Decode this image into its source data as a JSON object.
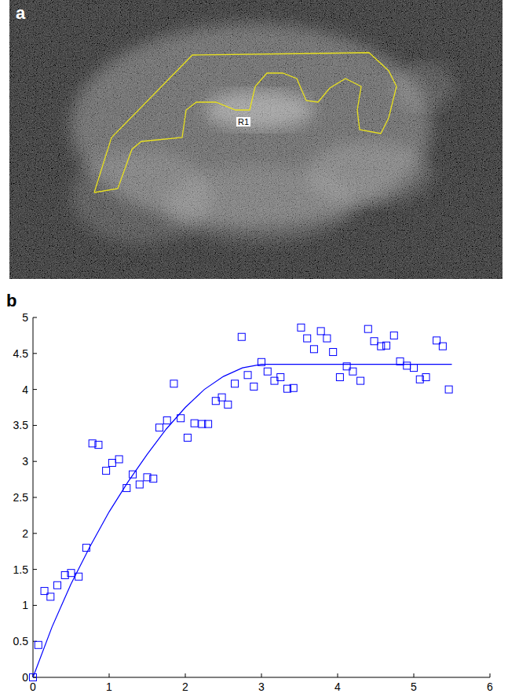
{
  "image_panel": {
    "label": "a",
    "roi_label": "R1"
  },
  "chart_data": {
    "type": "scatter",
    "panel_label": "b",
    "xlim": [
      0,
      6
    ],
    "xticks": [
      0,
      1,
      2,
      3,
      4,
      5,
      6
    ],
    "ylim": [
      0,
      5
    ],
    "yticks": [
      0,
      0.5,
      1,
      1.5,
      2,
      2.5,
      3,
      3.5,
      4,
      4.5,
      5
    ],
    "grid": false,
    "series": [
      {
        "type": "scatter",
        "marker": "square",
        "color": "#0000ff",
        "x": [
          0,
          0.07,
          0.15,
          0.23,
          0.32,
          0.42,
          0.5,
          0.6,
          0.7,
          0.78,
          0.86,
          0.96,
          1.04,
          1.13,
          1.23,
          1.31,
          1.4,
          1.5,
          1.58,
          1.66,
          1.76,
          1.85,
          1.94,
          2.03,
          2.12,
          2.22,
          2.3,
          2.4,
          2.48,
          2.56,
          2.65,
          2.74,
          2.82,
          2.9,
          3.0,
          3.08,
          3.17,
          3.25,
          3.34,
          3.42,
          3.52,
          3.6,
          3.69,
          3.78,
          3.86,
          3.94,
          4.03,
          4.12,
          4.2,
          4.3,
          4.4,
          4.48,
          4.57,
          4.64,
          4.74,
          4.82,
          4.91,
          5.0,
          5.08,
          5.16,
          5.3,
          5.38,
          5.46
        ],
        "values": [
          0,
          0.45,
          1.2,
          1.12,
          1.28,
          1.42,
          1.45,
          1.4,
          1.8,
          3.25,
          3.23,
          2.87,
          2.98,
          3.03,
          2.63,
          2.82,
          2.68,
          2.78,
          2.76,
          3.47,
          3.57,
          4.08,
          3.6,
          3.33,
          3.53,
          3.52,
          3.52,
          3.84,
          3.89,
          3.79,
          4.08,
          4.73,
          4.2,
          4.04,
          4.38,
          4.25,
          4.12,
          4.17,
          4.01,
          4.02,
          4.86,
          4.71,
          4.56,
          4.81,
          4.71,
          4.52,
          4.17,
          4.32,
          4.25,
          4.12,
          4.84,
          4.67,
          4.6,
          4.61,
          4.75,
          4.39,
          4.33,
          4.3,
          4.14,
          4.17,
          4.68,
          4.6,
          4.0
        ]
      },
      {
        "type": "line",
        "line_style": "solid",
        "color": "#0000ff",
        "x": [
          0,
          0.25,
          0.5,
          0.75,
          1,
          1.25,
          1.5,
          1.75,
          2,
          2.25,
          2.5,
          2.75,
          3,
          3.5,
          4,
          4.5,
          5,
          5.5
        ],
        "values": [
          0,
          0.7,
          1.3,
          1.82,
          2.3,
          2.72,
          3.1,
          3.45,
          3.75,
          4.0,
          4.18,
          4.3,
          4.35,
          4.35,
          4.35,
          4.35,
          4.35,
          4.35
        ]
      }
    ]
  }
}
